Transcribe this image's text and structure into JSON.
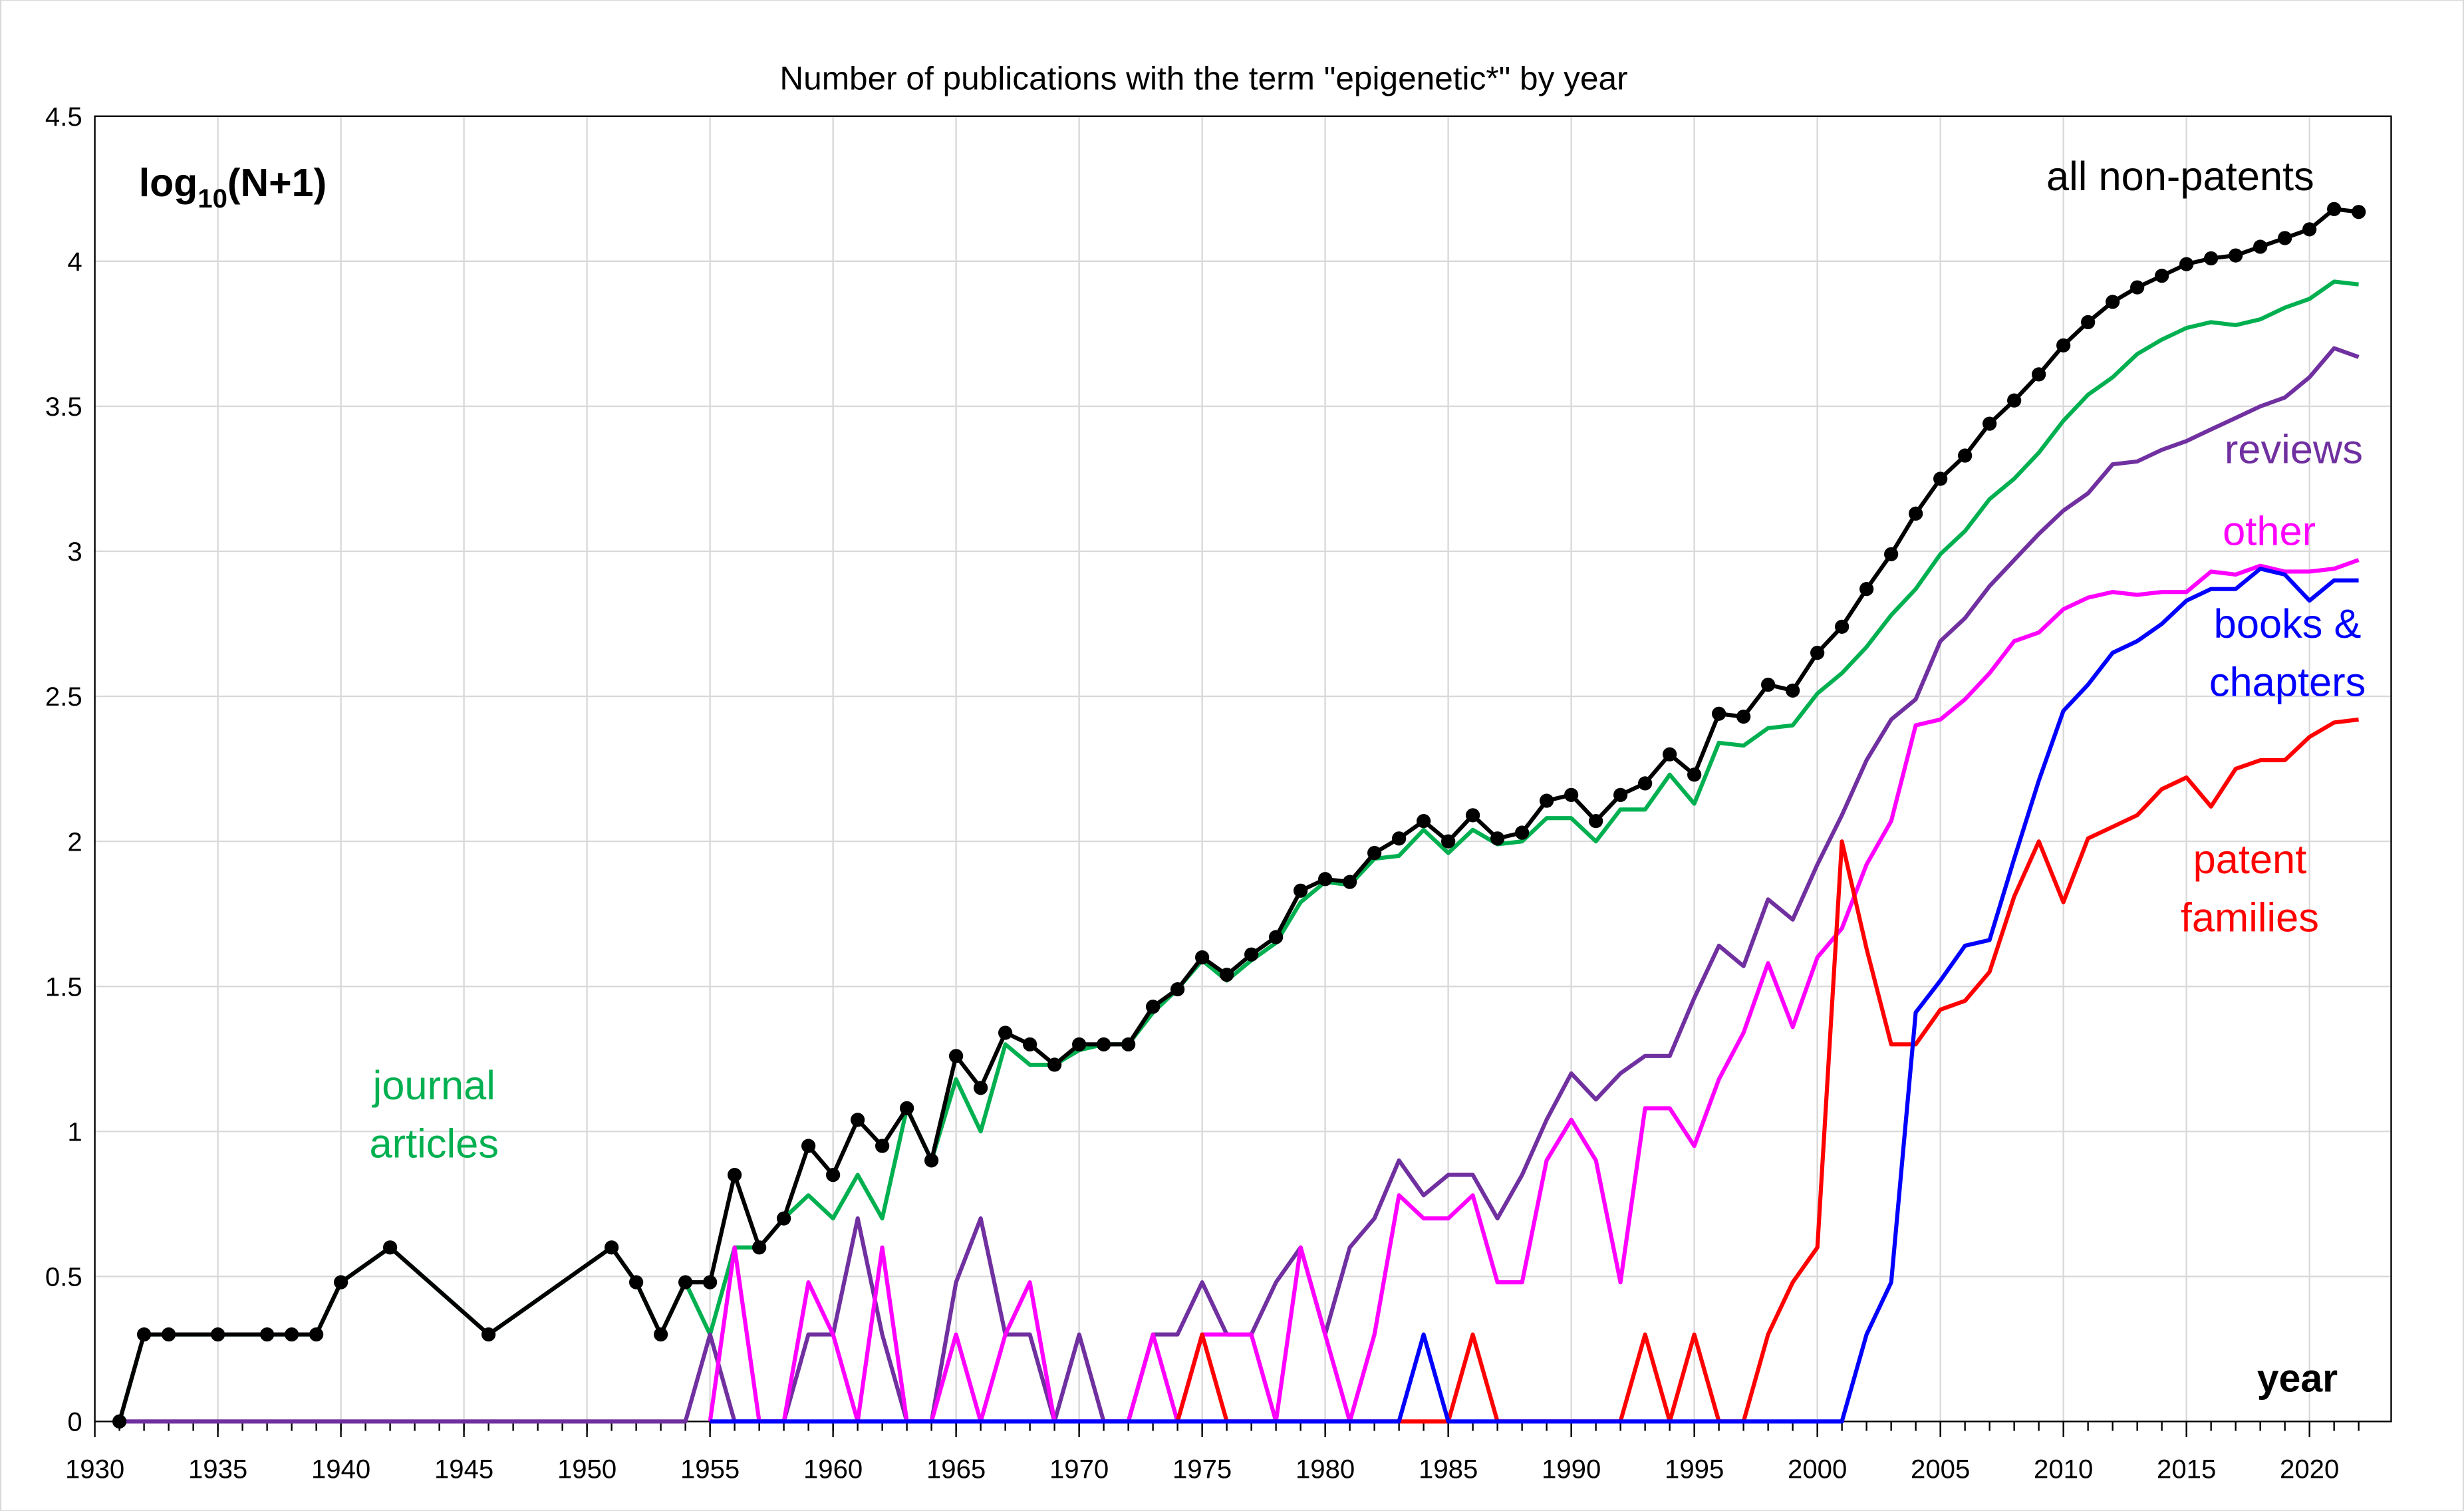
{
  "chart_data": {
    "type": "line",
    "title": "Number of publications with the term \"epigenetic*\" by year",
    "ylabel_main": "log",
    "ylabel_sub": "10",
    "ylabel_rest": "(N+1)",
    "xlabel": "year",
    "xlim": [
      1930,
      2023
    ],
    "ylim": [
      0,
      4.5
    ],
    "xticks": [
      1930,
      1935,
      1940,
      1945,
      1950,
      1955,
      1960,
      1965,
      1970,
      1975,
      1980,
      1985,
      1990,
      1995,
      2000,
      2005,
      2010,
      2015,
      2020
    ],
    "yticks": [
      0,
      0.5,
      1,
      1.5,
      2,
      2.5,
      3,
      3.5,
      4,
      4.5
    ],
    "ytick_labels": [
      "0",
      "0.5",
      "1",
      "1.5",
      "2",
      "2.5",
      "3",
      "3.5",
      "4",
      "4.5"
    ],
    "grid": true,
    "series": [
      {
        "name": "journal articles",
        "label_lines": [
          "journal",
          "articles"
        ],
        "color": "#00b050",
        "x": [
          1931,
          1932,
          1933,
          1935,
          1937,
          1938,
          1939,
          1940,
          1942,
          1946,
          1951,
          1952,
          1953,
          1954,
          1955,
          1956,
          1957,
          1958,
          1959,
          1960,
          1961,
          1962,
          1963,
          1964,
          1965,
          1966,
          1967,
          1968,
          1969,
          1970,
          1971,
          1972,
          1973,
          1974,
          1975,
          1976,
          1977,
          1978,
          1979,
          1980,
          1981,
          1982,
          1983,
          1984,
          1985,
          1986,
          1987,
          1988,
          1989,
          1990,
          1991,
          1992,
          1993,
          1994,
          1995,
          1996,
          1997,
          1998,
          1999,
          2000,
          2001,
          2002,
          2003,
          2004,
          2005,
          2006,
          2007,
          2008,
          2009,
          2010,
          2011,
          2012,
          2013,
          2014,
          2015,
          2016,
          2017,
          2018,
          2019,
          2020,
          2021,
          2022
        ],
        "y": [
          0,
          0.3,
          0.3,
          0.3,
          0.3,
          0.3,
          0.3,
          0.48,
          0.6,
          0.3,
          0.6,
          0.48,
          0.3,
          0.48,
          0.3,
          0.6,
          0.6,
          0.7,
          0.78,
          0.7,
          0.85,
          0.7,
          1.08,
          0.9,
          1.18,
          1.0,
          1.3,
          1.23,
          1.23,
          1.28,
          1.3,
          1.3,
          1.41,
          1.49,
          1.59,
          1.52,
          1.59,
          1.65,
          1.79,
          1.86,
          1.85,
          1.94,
          1.95,
          2.04,
          1.96,
          2.04,
          1.99,
          2.0,
          2.08,
          2.08,
          2.0,
          2.11,
          2.11,
          2.23,
          2.13,
          2.34,
          2.33,
          2.39,
          2.4,
          2.51,
          2.58,
          2.67,
          2.78,
          2.87,
          2.99,
          3.07,
          3.18,
          3.25,
          3.34,
          3.45,
          3.54,
          3.6,
          3.68,
          3.73,
          3.77,
          3.79,
          3.78,
          3.8,
          3.84,
          3.87,
          3.93,
          3.92
        ]
      },
      {
        "name": "reviews",
        "label_lines": [
          "reviews"
        ],
        "color": "#7030a0",
        "x": [
          1931,
          1954,
          1955,
          1956,
          1957,
          1958,
          1959,
          1960,
          1961,
          1962,
          1963,
          1964,
          1965,
          1966,
          1967,
          1968,
          1969,
          1970,
          1971,
          1972,
          1973,
          1974,
          1975,
          1976,
          1977,
          1978,
          1979,
          1980,
          1981,
          1982,
          1983,
          1984,
          1985,
          1986,
          1987,
          1988,
          1989,
          1990,
          1991,
          1992,
          1993,
          1994,
          1995,
          1996,
          1997,
          1998,
          1999,
          2000,
          2001,
          2002,
          2003,
          2004,
          2005,
          2006,
          2007,
          2008,
          2009,
          2010,
          2011,
          2012,
          2013,
          2014,
          2015,
          2016,
          2017,
          2018,
          2019,
          2020,
          2021,
          2022
        ],
        "y": [
          0,
          0,
          0.3,
          0,
          0,
          0,
          0.3,
          0.3,
          0.7,
          0.3,
          0,
          0,
          0.48,
          0.7,
          0.3,
          0.3,
          0,
          0.3,
          0,
          0,
          0.3,
          0.3,
          0.48,
          0.3,
          0.3,
          0.48,
          0.6,
          0.3,
          0.6,
          0.7,
          0.9,
          0.78,
          0.85,
          0.85,
          0.7,
          0.85,
          1.04,
          1.2,
          1.11,
          1.2,
          1.26,
          1.26,
          1.46,
          1.64,
          1.57,
          1.8,
          1.73,
          1.92,
          2.09,
          2.28,
          2.42,
          2.49,
          2.69,
          2.77,
          2.88,
          2.97,
          3.06,
          3.14,
          3.2,
          3.3,
          3.31,
          3.35,
          3.38,
          3.42,
          3.46,
          3.5,
          3.53,
          3.6,
          3.7,
          3.67
        ]
      },
      {
        "name": "other",
        "label_lines": [
          "other"
        ],
        "color": "#ff00ff",
        "x": [
          1955,
          1956,
          1957,
          1958,
          1959,
          1960,
          1961,
          1962,
          1963,
          1964,
          1965,
          1966,
          1967,
          1968,
          1969,
          1970,
          1971,
          1972,
          1973,
          1974,
          1975,
          1976,
          1977,
          1978,
          1979,
          1980,
          1981,
          1982,
          1983,
          1984,
          1985,
          1986,
          1987,
          1988,
          1989,
          1990,
          1991,
          1992,
          1993,
          1994,
          1995,
          1996,
          1997,
          1998,
          1999,
          2000,
          2001,
          2002,
          2003,
          2004,
          2005,
          2006,
          2007,
          2008,
          2009,
          2010,
          2011,
          2012,
          2013,
          2014,
          2015,
          2016,
          2017,
          2018,
          2019,
          2020,
          2021,
          2022
        ],
        "y": [
          0,
          0.6,
          0,
          0,
          0.48,
          0.3,
          0,
          0.6,
          0,
          0,
          0.3,
          0,
          0.3,
          0.48,
          0,
          0,
          0,
          0,
          0.3,
          0,
          0.3,
          0.3,
          0.3,
          0,
          0.6,
          0.3,
          0,
          0.3,
          0.78,
          0.7,
          0.7,
          0.78,
          0.48,
          0.48,
          0.9,
          1.04,
          0.9,
          0.48,
          1.08,
          1.08,
          0.95,
          1.18,
          1.34,
          1.58,
          1.36,
          1.6,
          1.7,
          1.92,
          2.07,
          2.4,
          2.42,
          2.49,
          2.58,
          2.69,
          2.72,
          2.8,
          2.84,
          2.86,
          2.85,
          2.86,
          2.86,
          2.93,
          2.92,
          2.95,
          2.93,
          2.93,
          2.94,
          2.97
        ]
      },
      {
        "name": "patent families",
        "label_lines": [
          "patent",
          "families"
        ],
        "color": "#ff0000",
        "x": [
          1974,
          1975,
          1976,
          1985,
          1986,
          1987,
          1992,
          1993,
          1994,
          1995,
          1996,
          1997,
          1998,
          1999,
          2000,
          2001,
          2002,
          2003,
          2004,
          2005,
          2006,
          2007,
          2008,
          2009,
          2010,
          2011,
          2012,
          2013,
          2014,
          2015,
          2016,
          2017,
          2018,
          2019,
          2020,
          2021,
          2022
        ],
        "y": [
          0,
          0.3,
          0,
          0,
          0.3,
          0,
          0,
          0.3,
          0,
          0.3,
          0,
          0,
          0.3,
          0.48,
          0.6,
          2.0,
          1.63,
          1.3,
          1.3,
          1.42,
          1.45,
          1.55,
          1.81,
          2.0,
          1.79,
          2.01,
          2.05,
          2.09,
          2.18,
          2.22,
          2.12,
          2.25,
          2.28,
          2.28,
          2.36,
          2.41,
          2.42
        ]
      },
      {
        "name": "books & chapters",
        "label_lines": [
          "books &",
          "chapters"
        ],
        "color": "#0000ff",
        "x": [
          1955,
          1983,
          1984,
          1985,
          2001,
          2002,
          2003,
          2004,
          2005,
          2006,
          2007,
          2008,
          2009,
          2010,
          2011,
          2012,
          2013,
          2014,
          2015,
          2016,
          2017,
          2018,
          2019,
          2020,
          2021,
          2022
        ],
        "y": [
          0,
          0,
          0.3,
          0,
          0,
          0.3,
          0.48,
          1.41,
          1.52,
          1.64,
          1.66,
          1.94,
          2.21,
          2.45,
          2.54,
          2.65,
          2.69,
          2.75,
          2.83,
          2.87,
          2.87,
          2.94,
          2.92,
          2.83,
          2.9,
          2.9
        ]
      },
      {
        "name": "all non-patents",
        "label_lines": [
          "all non-patents"
        ],
        "color": "#000000",
        "markers": true,
        "x": [
          1931,
          1932,
          1933,
          1935,
          1937,
          1938,
          1939,
          1940,
          1942,
          1946,
          1951,
          1952,
          1953,
          1954,
          1955,
          1956,
          1957,
          1958,
          1959,
          1960,
          1961,
          1962,
          1963,
          1964,
          1965,
          1966,
          1967,
          1968,
          1969,
          1970,
          1971,
          1972,
          1973,
          1974,
          1975,
          1976,
          1977,
          1978,
          1979,
          1980,
          1981,
          1982,
          1983,
          1984,
          1985,
          1986,
          1987,
          1988,
          1989,
          1990,
          1991,
          1992,
          1993,
          1994,
          1995,
          1996,
          1997,
          1998,
          1999,
          2000,
          2001,
          2002,
          2003,
          2004,
          2005,
          2006,
          2007,
          2008,
          2009,
          2010,
          2011,
          2012,
          2013,
          2014,
          2015,
          2016,
          2017,
          2018,
          2019,
          2020,
          2021,
          2022
        ],
        "y": [
          0,
          0.3,
          0.3,
          0.3,
          0.3,
          0.3,
          0.3,
          0.48,
          0.6,
          0.3,
          0.6,
          0.48,
          0.3,
          0.48,
          0.48,
          0.85,
          0.6,
          0.7,
          0.95,
          0.85,
          1.04,
          0.95,
          1.08,
          0.9,
          1.26,
          1.15,
          1.34,
          1.3,
          1.23,
          1.3,
          1.3,
          1.3,
          1.43,
          1.49,
          1.6,
          1.54,
          1.61,
          1.67,
          1.83,
          1.87,
          1.86,
          1.96,
          2.01,
          2.07,
          2.0,
          2.09,
          2.01,
          2.03,
          2.14,
          2.16,
          2.07,
          2.16,
          2.2,
          2.3,
          2.23,
          2.44,
          2.43,
          2.54,
          2.52,
          2.65,
          2.74,
          2.87,
          2.99,
          3.13,
          3.25,
          3.33,
          3.44,
          3.52,
          3.61,
          3.71,
          3.79,
          3.86,
          3.91,
          3.95,
          3.99,
          4.01,
          4.02,
          4.05,
          4.08,
          4.11,
          4.18,
          4.17
        ]
      }
    ]
  }
}
